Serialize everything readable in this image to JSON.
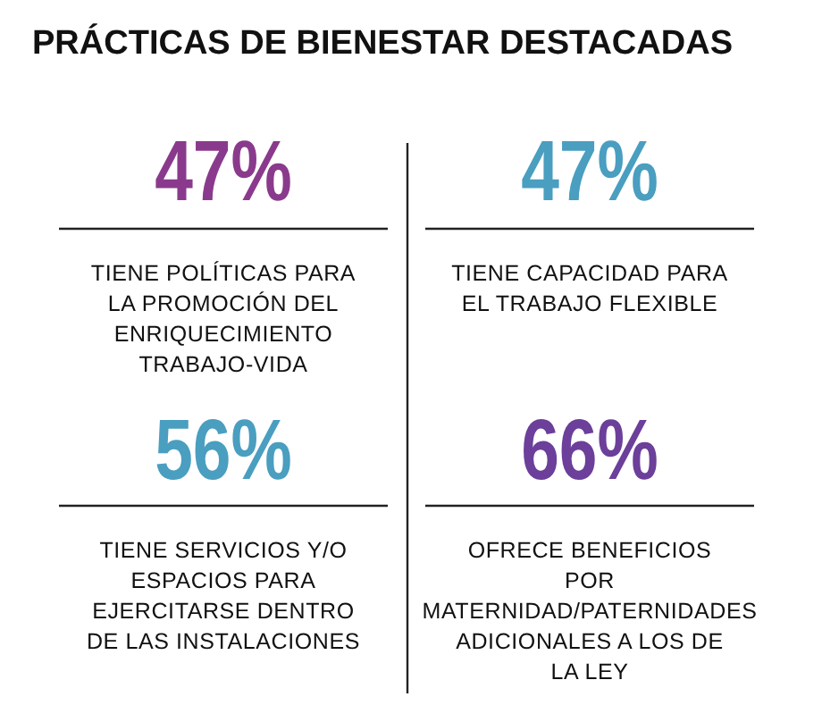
{
  "chart_data": {
    "type": "other",
    "title": "PRÁCTICAS DE BIENESTAR DESTACADAS",
    "categories": [
      "TIENE POLÍTICAS PARA LA PROMOCIÓN DEL ENRIQUECIMIENTO TRABAJO-VIDA",
      "TIENE CAPACIDAD PARA EL TRABAJO FLEXIBLE",
      "TIENE SERVICIOS Y/O ESPACIOS PARA EJERCITARSE DENTRO DE LAS INSTALACIONES",
      "OFRECE BENEFICIOS POR MATERNIDAD/PATERNIDADES ADICIONALES A LOS DE LA LEY"
    ],
    "values": [
      47,
      47,
      56,
      66
    ],
    "value_labels": [
      "47%",
      "47%",
      "56%",
      "66%"
    ],
    "colors": [
      "#8a3a8c",
      "#4a9ec0",
      "#4a9ec0",
      "#6b3f9a"
    ]
  }
}
